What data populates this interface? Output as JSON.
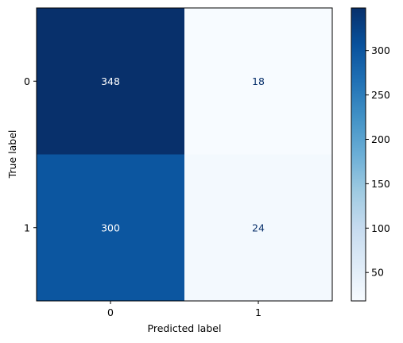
{
  "chart_data": {
    "type": "heatmap",
    "title": "",
    "xlabel": "Predicted label",
    "ylabel": "True label",
    "x_categories": [
      "0",
      "1"
    ],
    "y_categories": [
      "0",
      "1"
    ],
    "values": [
      [
        348,
        18
      ],
      [
        300,
        24
      ]
    ],
    "colormap": "Blues",
    "colorbar": {
      "range": [
        18,
        348
      ],
      "ticks": [
        "50",
        "100",
        "150",
        "200",
        "250",
        "300"
      ],
      "tick_values": [
        50,
        100,
        150,
        200,
        250,
        300
      ]
    },
    "grid": false
  }
}
